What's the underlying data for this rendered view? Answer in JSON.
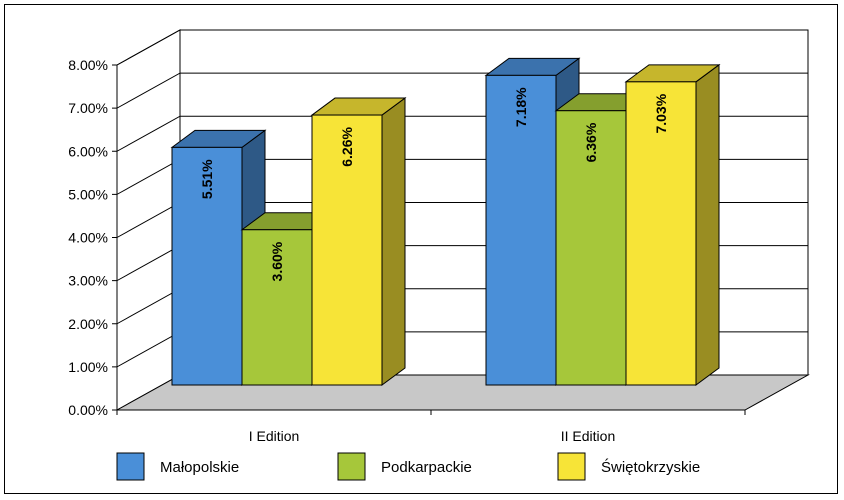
{
  "chart_data": {
    "type": "bar",
    "style": "3d-clustered",
    "categories": [
      "I Edition",
      "II Edition"
    ],
    "series": [
      {
        "name": "Małopolskie",
        "color": "#4a8fd8",
        "values": [
          5.51,
          7.18
        ],
        "labels": [
          "5.51%",
          "7.18%"
        ]
      },
      {
        "name": "Podkarpackie",
        "color": "#a6c73a",
        "values": [
          3.6,
          6.36
        ],
        "labels": [
          "3.60%",
          "6.36%"
        ]
      },
      {
        "name": "Świętokrzyskie",
        "color": "#f7e437",
        "values": [
          6.26,
          7.03
        ],
        "labels": [
          "6.26%",
          "7.03%"
        ]
      }
    ],
    "y_ticks": [
      "0.00%",
      "1.00%",
      "2.00%",
      "3.00%",
      "4.00%",
      "5.00%",
      "6.00%",
      "7.00%",
      "8.00%"
    ],
    "ylim": [
      0,
      8
    ],
    "grid": true,
    "legend_position": "bottom",
    "title": "",
    "xlabel": "",
    "ylabel": ""
  }
}
